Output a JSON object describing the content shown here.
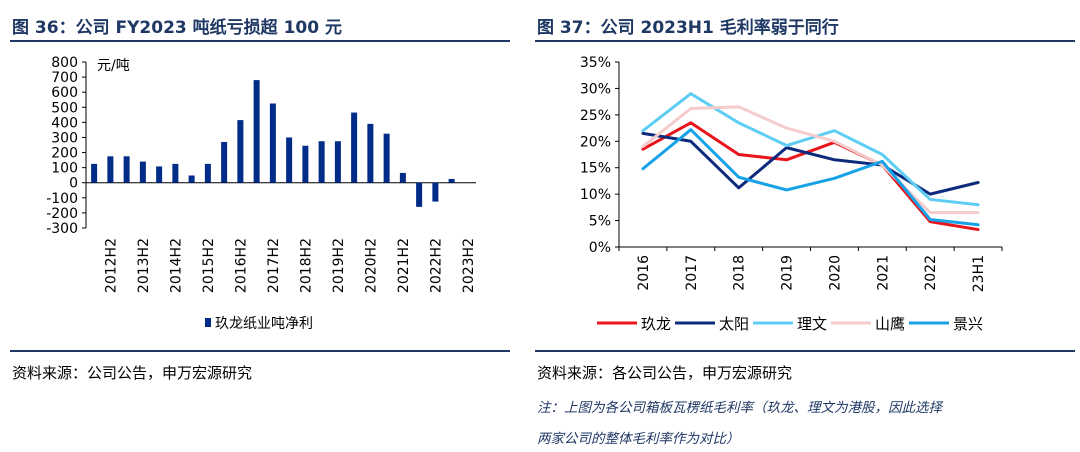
{
  "left": {
    "title": "图 36：公司 FY2023 吨纸亏损超 100 元",
    "source": "资料来源：公司公告，申万宏源研究"
  },
  "right": {
    "title": "图 37：公司 2023H1 毛利率弱于同行",
    "source": "资料来源：各公司公告，申万宏源研究",
    "note_line1": "注：上图为各公司箱板瓦楞纸毛利率（玖龙、理文为港股，因此选择",
    "note_line2": "两家公司的整体毛利率作为对比）"
  },
  "colors": {
    "navy": "#002b87",
    "title": "#1f3864"
  },
  "chart_data": [
    {
      "type": "bar",
      "title": "图 36：公司 FY2023 吨纸亏损超 100 元",
      "ylabel": "元/吨",
      "xlabel": "",
      "ylim": [
        -300,
        800
      ],
      "yticks": [
        -300,
        -200,
        -100,
        0,
        100,
        200,
        300,
        400,
        500,
        600,
        700,
        800
      ],
      "categories": [
        "2012H1",
        "2012H2",
        "2013H1",
        "2013H2",
        "2014H1",
        "2014H2",
        "2015H1",
        "2015H2",
        "2016H1",
        "2016H2",
        "2017H1",
        "2017H2",
        "2018H1",
        "2018H2",
        "2019H1",
        "2019H2",
        "2020H1",
        "2020H2",
        "2021H1",
        "2021H2",
        "2022H1",
        "2022H2",
        "2023H1",
        "2023H2"
      ],
      "tick_labels": [
        "2012H2",
        "2013H2",
        "2014H2",
        "2015H2",
        "2016H2",
        "2017H2",
        "2018H2",
        "2019H2",
        "2020H2",
        "2021H2",
        "2022H2",
        "2023H2"
      ],
      "series": [
        {
          "name": "玖龙纸业吨净利",
          "color": "#002b87",
          "values": [
            125,
            175,
            175,
            140,
            108,
            125,
            48,
            125,
            270,
            415,
            680,
            525,
            300,
            245,
            275,
            275,
            465,
            390,
            325,
            65,
            -160,
            -125,
            25,
            null
          ]
        }
      ],
      "legend": "bottom-center",
      "grid": false
    },
    {
      "type": "line",
      "title": "图 37：公司 2023H1 毛利率弱于同行",
      "ylim": [
        0,
        35
      ],
      "yticks": [
        "0%",
        "5%",
        "10%",
        "15%",
        "20%",
        "25%",
        "30%",
        "35%"
      ],
      "categories": [
        "2016",
        "2017",
        "2018",
        "2019",
        "2020",
        "2021",
        "2022",
        "23H1"
      ],
      "series": [
        {
          "name": "玖龙",
          "color": "#e8151c",
          "values": [
            18.5,
            23.5,
            17.5,
            16.5,
            19.8,
            15.5,
            4.8,
            3.3
          ]
        },
        {
          "name": "太阳",
          "color": "#0d2b7d",
          "values": [
            21.5,
            20.0,
            11.2,
            18.8,
            16.5,
            15.5,
            10.0,
            12.2
          ]
        },
        {
          "name": "理文",
          "color": "#5ecdf4",
          "values": [
            22.0,
            29.0,
            23.5,
            19.2,
            22.0,
            17.5,
            9.0,
            8.0
          ]
        },
        {
          "name": "山鹰",
          "color": "#f4cccc",
          "values": [
            19.0,
            26.2,
            26.5,
            22.5,
            20.0,
            15.5,
            6.5,
            6.5
          ]
        },
        {
          "name": "景兴",
          "color": "#15a2e6",
          "values": [
            14.8,
            22.2,
            13.2,
            10.8,
            13.0,
            16.2,
            5.2,
            4.2
          ]
        }
      ],
      "legend": "bottom",
      "grid": false
    }
  ]
}
